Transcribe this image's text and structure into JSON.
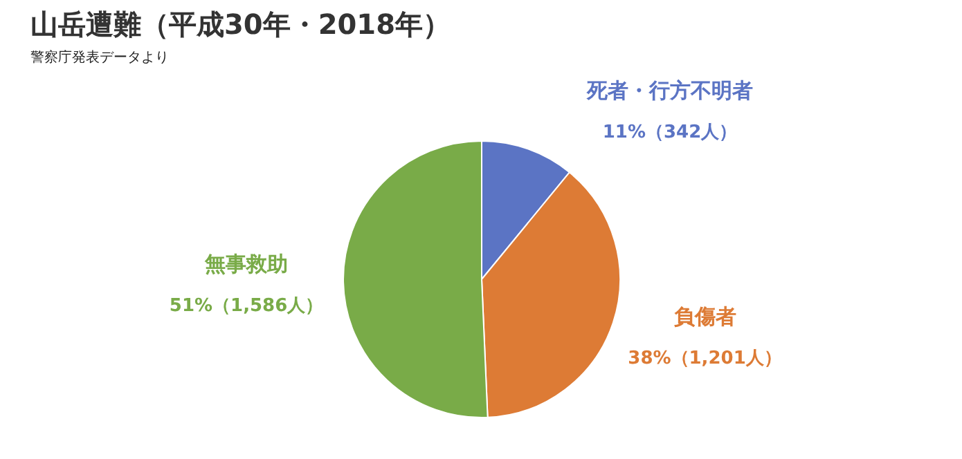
{
  "chart_data": {
    "type": "pie",
    "title": "山岳遭難（平成30年・2018年）",
    "subtitle": "警察庁発表データより",
    "categories": [
      "死者・行方不明者",
      "負傷者",
      "無事救助"
    ],
    "values": [
      342,
      1201,
      1586
    ],
    "colors": [
      "#5b74c4",
      "#dd7b35",
      "#79ab48"
    ],
    "value_labels": [
      "11%（342人）",
      "38%（1,201人）",
      "51%（1,586人）"
    ]
  }
}
